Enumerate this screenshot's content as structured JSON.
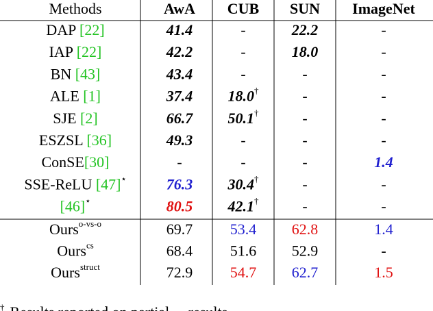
{
  "table": {
    "header": [
      "Methods",
      "AwA",
      "CUB",
      "SUN",
      "ImageNet"
    ],
    "rows": [
      {
        "method": {
          "name": "DAP ",
          "cite": "[22]"
        },
        "cells": [
          {
            "text": "41.4",
            "style": "bi"
          },
          {
            "text": "-"
          },
          {
            "text": "22.2",
            "style": "bi"
          },
          {
            "text": "-"
          }
        ]
      },
      {
        "method": {
          "name": "IAP ",
          "cite": "[22]"
        },
        "cells": [
          {
            "text": "42.2",
            "style": "bi"
          },
          {
            "text": "-"
          },
          {
            "text": "18.0",
            "style": "bi"
          },
          {
            "text": "-"
          }
        ]
      },
      {
        "method": {
          "name": "BN ",
          "cite": "[43]"
        },
        "cells": [
          {
            "text": "43.4",
            "style": "bi"
          },
          {
            "text": "-"
          },
          {
            "text": "-"
          },
          {
            "text": "-"
          }
        ]
      },
      {
        "method": {
          "name": "ALE ",
          "cite": "[1]"
        },
        "cells": [
          {
            "text": "37.4",
            "style": "bi"
          },
          {
            "text": "18.0",
            "style": "bi",
            "sup": "†"
          },
          {
            "text": "-"
          },
          {
            "text": "-"
          }
        ]
      },
      {
        "method": {
          "name": "SJE ",
          "cite": "[2]"
        },
        "cells": [
          {
            "text": "66.7",
            "style": "bi"
          },
          {
            "text": "50.1",
            "style": "bi",
            "sup": "†"
          },
          {
            "text": "-"
          },
          {
            "text": "-"
          }
        ]
      },
      {
        "method": {
          "name": "ESZSL ",
          "cite": "[36]"
        },
        "cells": [
          {
            "text": "49.3",
            "style": "bi"
          },
          {
            "text": "-"
          },
          {
            "text": "-"
          },
          {
            "text": "-"
          }
        ]
      },
      {
        "method": {
          "name": "ConSE",
          "cite": "[30]"
        },
        "cells": [
          {
            "text": "-"
          },
          {
            "text": "-"
          },
          {
            "text": "-"
          },
          {
            "text": "1.4",
            "style": "bi",
            "color": "#1f1fcf"
          }
        ]
      },
      {
        "method": {
          "name": "SSE-ReLU ",
          "cite": "[47]",
          "sup": "⋆"
        },
        "cells": [
          {
            "text": "76.3",
            "style": "bi",
            "color": "#1f1fcf"
          },
          {
            "text": "30.4",
            "style": "bi",
            "sup": "†"
          },
          {
            "text": "-"
          },
          {
            "text": "-"
          }
        ]
      },
      {
        "method": {
          "cite": "[46]",
          "sup": "⋆"
        },
        "cells": [
          {
            "text": "80.5",
            "style": "bi",
            "color": "#e01010"
          },
          {
            "text": "42.1",
            "style": "bi",
            "sup": "†"
          },
          {
            "text": "-"
          },
          {
            "text": "-"
          }
        ]
      },
      {
        "method": {
          "name": "Ours",
          "sup": "o-vs-o"
        },
        "cells": [
          {
            "text": "69.7"
          },
          {
            "text": "53.4",
            "color": "#1f1fcf"
          },
          {
            "text": "62.8",
            "color": "#e01010"
          },
          {
            "text": "1.4",
            "color": "#1f1fcf"
          }
        ]
      },
      {
        "method": {
          "name": "Ours",
          "sup": "cs"
        },
        "cells": [
          {
            "text": "68.4"
          },
          {
            "text": "51.6"
          },
          {
            "text": "52.9"
          },
          {
            "text": "-"
          }
        ]
      },
      {
        "method": {
          "name": "Ours",
          "sup": "struct"
        },
        "cells": [
          {
            "text": "72.9"
          },
          {
            "text": "54.7",
            "color": "#e01010"
          },
          {
            "text": "62.7",
            "color": "#1f1fcf"
          },
          {
            "text": "1.5",
            "color": "#e01010"
          }
        ]
      }
    ],
    "footnote": {
      "mark": "†",
      "text": "Results reported on partial ... results"
    }
  }
}
